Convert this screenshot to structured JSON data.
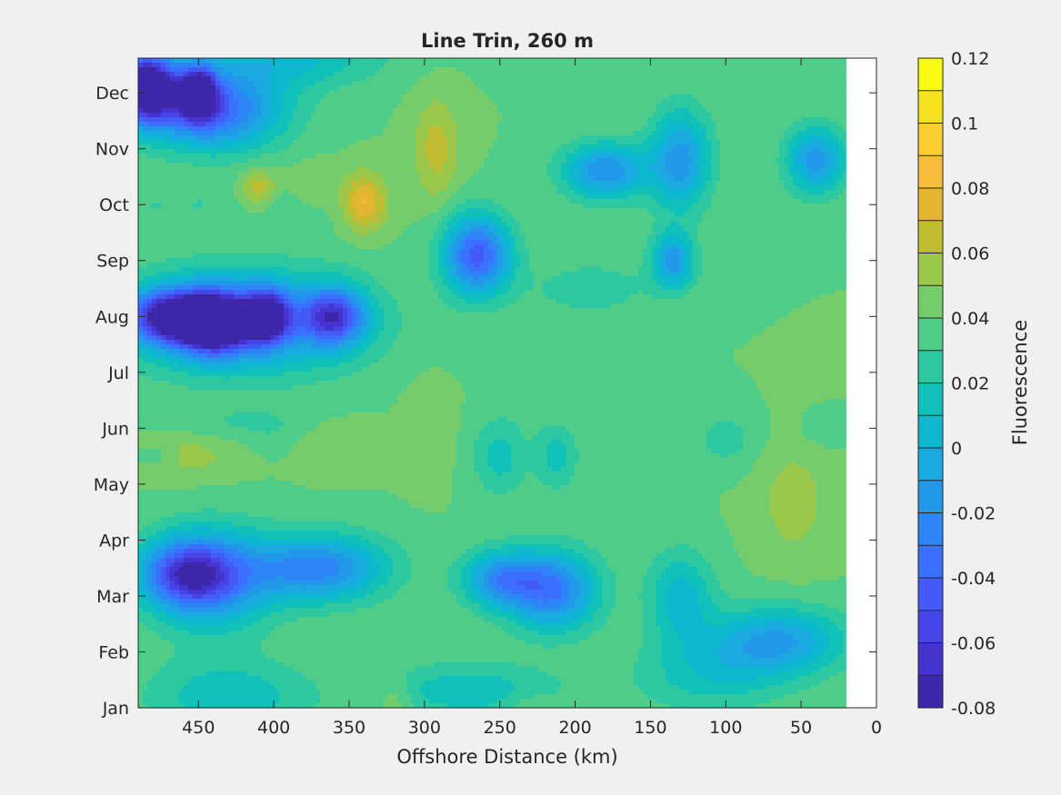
{
  "chart_data": {
    "type": "heatmap",
    "subtype": "filled-contour",
    "title": "Line Trin, 260 m",
    "xlabel": "Offshore Distance (km)",
    "ylabel": "",
    "x_reversed": true,
    "xlim": [
      490,
      0
    ],
    "x_ticks": [
      450,
      400,
      350,
      300,
      250,
      200,
      150,
      100,
      50,
      0
    ],
    "x_data_range": [
      490,
      20
    ],
    "y_ticks": [
      "Jan",
      "Feb",
      "Mar",
      "Apr",
      "May",
      "Jun",
      "Jul",
      "Aug",
      "Sep",
      "Oct",
      "Nov",
      "Dec"
    ],
    "grid": false,
    "colorbar": {
      "label": "Fluorescence",
      "levels": [
        -0.08,
        -0.07,
        -0.06,
        -0.05,
        -0.04,
        -0.03,
        -0.02,
        -0.01,
        0,
        0.01,
        0.02,
        0.03,
        0.04,
        0.05,
        0.06,
        0.07,
        0.08,
        0.09,
        0.1,
        0.11,
        0.12
      ],
      "tick_values": [
        -0.08,
        -0.06,
        -0.04,
        -0.02,
        0,
        0.02,
        0.04,
        0.06,
        0.08,
        0.1,
        0.12
      ],
      "tick_labels": [
        "-0.08",
        "-0.06",
        "-0.04",
        "-0.02",
        "0",
        "0.02",
        "0.04",
        "0.06",
        "0.08",
        "0.1",
        "0.12"
      ],
      "colors": [
        "#3e26a8",
        "#4433cf",
        "#4745e8",
        "#445af7",
        "#3b6ffd",
        "#2d85f8",
        "#2299e8",
        "#1aa9e0",
        "#0cb8d0",
        "#0fc1b9",
        "#2bc8a2",
        "#4ecc8a",
        "#74cc6c",
        "#9bc74b",
        "#c0bd32",
        "#e2b631",
        "#f8bc3b",
        "#fcce2e",
        "#f5e41d",
        "#f9fb15"
      ]
    },
    "background": 0.04,
    "features": [
      {
        "x": 485,
        "y": 11.1,
        "rx": 20,
        "ry": 0.6,
        "v": -0.1
      },
      {
        "x": 450,
        "y": 11.0,
        "rx": 12,
        "ry": 0.45,
        "v": -0.07
      },
      {
        "x": 440,
        "y": 10.7,
        "rx": 45,
        "ry": 0.7,
        "v": -0.04
      },
      {
        "x": 470,
        "y": 9.1,
        "rx": 40,
        "ry": 0.3,
        "v": 0.04
      },
      {
        "x": 380,
        "y": 9.1,
        "rx": 40,
        "ry": 0.45,
        "v": 0.025
      },
      {
        "x": 478,
        "y": 9.0,
        "rx": 12,
        "ry": 0.22,
        "v": 0.03
      },
      {
        "x": 450,
        "y": 9.0,
        "rx": 10,
        "ry": 0.22,
        "v": 0.03
      },
      {
        "x": 410,
        "y": 9.3,
        "rx": 12,
        "ry": 0.35,
        "v": 0.07
      },
      {
        "x": 375,
        "y": 9.25,
        "rx": 20,
        "ry": 0.45,
        "v": 0.06
      },
      {
        "x": 340,
        "y": 9.05,
        "rx": 15,
        "ry": 0.5,
        "v": 0.085
      },
      {
        "x": 292,
        "y": 10.0,
        "rx": 15,
        "ry": 0.9,
        "v": 0.065
      },
      {
        "x": 220,
        "y": 11.5,
        "rx": 15,
        "ry": 0.4,
        "v": 0.035
      },
      {
        "x": 265,
        "y": 8.1,
        "rx": 22,
        "ry": 0.7,
        "v": -0.045
      },
      {
        "x": 180,
        "y": 9.6,
        "rx": 28,
        "ry": 0.5,
        "v": -0.02
      },
      {
        "x": 130,
        "y": 9.8,
        "rx": 20,
        "ry": 0.9,
        "v": -0.015
      },
      {
        "x": 40,
        "y": 9.8,
        "rx": 20,
        "ry": 0.6,
        "v": -0.015
      },
      {
        "x": 95,
        "y": 11.3,
        "rx": 14,
        "ry": 0.6,
        "v": 0.035
      },
      {
        "x": 190,
        "y": 7.5,
        "rx": 45,
        "ry": 0.55,
        "v": 0.025
      },
      {
        "x": 135,
        "y": 8.0,
        "rx": 14,
        "ry": 0.5,
        "v": -0.015
      },
      {
        "x": 440,
        "y": 6.9,
        "rx": 22,
        "ry": 0.5,
        "v": -0.09
      },
      {
        "x": 470,
        "y": 7.0,
        "rx": 25,
        "ry": 0.45,
        "v": -0.06
      },
      {
        "x": 405,
        "y": 7.0,
        "rx": 15,
        "ry": 0.45,
        "v": -0.06
      },
      {
        "x": 360,
        "y": 7.0,
        "rx": 20,
        "ry": 0.5,
        "v": -0.04
      },
      {
        "x": 420,
        "y": 6.9,
        "rx": 75,
        "ry": 0.9,
        "v": -0.025
      },
      {
        "x": 460,
        "y": 4.5,
        "rx": 35,
        "ry": 0.4,
        "v": 0.055
      },
      {
        "x": 480,
        "y": 4.5,
        "rx": 15,
        "ry": 0.2,
        "v": 0.025
      },
      {
        "x": 420,
        "y": 5.1,
        "rx": 50,
        "ry": 0.3,
        "v": 0.03
      },
      {
        "x": 358,
        "y": 4.7,
        "rx": 28,
        "ry": 0.45,
        "v": 0.05
      },
      {
        "x": 400,
        "y": 4.8,
        "rx": 18,
        "ry": 0.35,
        "v": 0.035
      },
      {
        "x": 297,
        "y": 5.0,
        "rx": 15,
        "ry": 0.8,
        "v": 0.05
      },
      {
        "x": 212,
        "y": 4.5,
        "rx": 14,
        "ry": 0.6,
        "v": 0.015
      },
      {
        "x": 250,
        "y": 4.5,
        "rx": 18,
        "ry": 0.7,
        "v": 0.015
      },
      {
        "x": 55,
        "y": 3.7,
        "rx": 24,
        "ry": 1.1,
        "v": 0.055
      },
      {
        "x": 40,
        "y": 4.9,
        "rx": 18,
        "ry": 0.4,
        "v": 0.035
      },
      {
        "x": 27,
        "y": 4.3,
        "rx": 8,
        "ry": 0.4,
        "v": 0.04
      },
      {
        "x": 100,
        "y": 4.8,
        "rx": 22,
        "ry": 0.5,
        "v": 0.025
      },
      {
        "x": 458,
        "y": 2.4,
        "rx": 30,
        "ry": 0.6,
        "v": -0.035
      },
      {
        "x": 440,
        "y": 2.3,
        "rx": 40,
        "ry": 0.9,
        "v": -0.015
      },
      {
        "x": 370,
        "y": 2.5,
        "rx": 45,
        "ry": 0.6,
        "v": -0.025
      },
      {
        "x": 215,
        "y": 2.1,
        "rx": 30,
        "ry": 0.7,
        "v": -0.03
      },
      {
        "x": 250,
        "y": 2.3,
        "rx": 25,
        "ry": 0.5,
        "v": -0.015
      },
      {
        "x": 130,
        "y": 2.0,
        "rx": 22,
        "ry": 0.8,
        "v": 0.005
      },
      {
        "x": 65,
        "y": 1.2,
        "rx": 45,
        "ry": 0.6,
        "v": -0.01
      },
      {
        "x": 320,
        "y": 0.1,
        "rx": 12,
        "ry": 0.45,
        "v": 0.055
      },
      {
        "x": 230,
        "y": 0.0,
        "rx": 18,
        "ry": 0.3,
        "v": 0.05
      },
      {
        "x": 95,
        "y": 0.0,
        "rx": 8,
        "ry": 0.2,
        "v": 0.04
      },
      {
        "x": 430,
        "y": 0.2,
        "rx": 55,
        "ry": 0.7,
        "v": 0.012
      },
      {
        "x": 270,
        "y": 0.3,
        "rx": 60,
        "ry": 0.5,
        "v": 0.012
      },
      {
        "x": 110,
        "y": 0.6,
        "rx": 50,
        "ry": 0.7,
        "v": 0.015
      },
      {
        "x": 390,
        "y": 11.6,
        "rx": 60,
        "ry": 0.5,
        "v": 0.008
      }
    ]
  }
}
